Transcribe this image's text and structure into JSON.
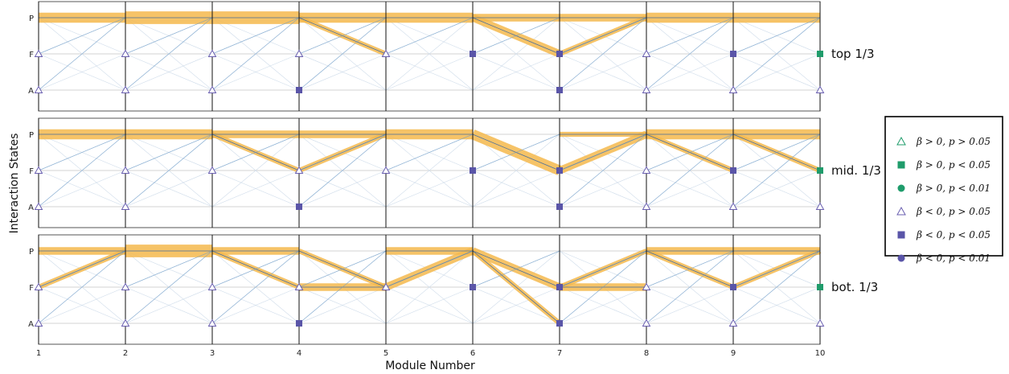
{
  "colors": {
    "band": "#f5b94c",
    "thin_line": "#6e9cc9",
    "vline": "#111111",
    "grid": "#d3d3d3",
    "open_marker": "#6a5fb0",
    "filled_purple": "#5a55a8",
    "filled_green": "#1f9c6b"
  },
  "chart_data": {
    "type": "line",
    "xlabel": "Module Number",
    "ylabel": "Interaction States",
    "x": [
      1,
      2,
      3,
      4,
      5,
      6,
      7,
      8,
      9,
      10
    ],
    "x_tick_labels": [
      "1",
      "2",
      "3",
      "4",
      "5",
      "6",
      "7",
      "8",
      "9",
      "10"
    ],
    "y_categories": [
      "P",
      "F",
      "A"
    ],
    "legend": [
      {
        "label": "β > 0, p > 0.05",
        "marker": "open-triangle",
        "color": "#1f9c6b"
      },
      {
        "label": "β > 0, p < 0.05",
        "marker": "square",
        "color": "#1f9c6b"
      },
      {
        "label": "β > 0, p < 0.01",
        "marker": "circle",
        "color": "#1f9c6b"
      },
      {
        "label": "β < 0, p > 0.05",
        "marker": "open-triangle",
        "color": "#6a5fb0"
      },
      {
        "label": "β < 0, p < 0.05",
        "marker": "square",
        "color": "#5a55a8"
      },
      {
        "label": "β < 0, p < 0.01",
        "marker": "circle",
        "color": "#5a55a8"
      }
    ],
    "panels": [
      {
        "label": "top 1/3",
        "bands": [
          {
            "from": [
              1,
              "P"
            ],
            "to": [
              2,
              "P"
            ],
            "weight": 3
          },
          {
            "from": [
              2,
              "P"
            ],
            "to": [
              3,
              "P"
            ],
            "weight": 4
          },
          {
            "from": [
              3,
              "P"
            ],
            "to": [
              4,
              "P"
            ],
            "weight": 4
          },
          {
            "from": [
              4,
              "P"
            ],
            "to": [
              5,
              "P"
            ],
            "weight": 3
          },
          {
            "from": [
              4,
              "P"
            ],
            "to": [
              5,
              "F"
            ],
            "weight": 1
          },
          {
            "from": [
              5,
              "P"
            ],
            "to": [
              6,
              "P"
            ],
            "weight": 3
          },
          {
            "from": [
              6,
              "P"
            ],
            "to": [
              7,
              "P"
            ],
            "weight": 2
          },
          {
            "from": [
              6,
              "P"
            ],
            "to": [
              7,
              "F"
            ],
            "weight": 2
          },
          {
            "from": [
              7,
              "P"
            ],
            "to": [
              8,
              "P"
            ],
            "weight": 2
          },
          {
            "from": [
              7,
              "F"
            ],
            "to": [
              8,
              "P"
            ],
            "weight": 1
          },
          {
            "from": [
              8,
              "P"
            ],
            "to": [
              9,
              "P"
            ],
            "weight": 3
          },
          {
            "from": [
              9,
              "P"
            ],
            "to": [
              10,
              "P"
            ],
            "weight": 3
          }
        ],
        "markers": [
          {
            "x": 1,
            "state": "F",
            "marker": "open-triangle",
            "color": "#6a5fb0"
          },
          {
            "x": 1,
            "state": "A",
            "marker": "open-triangle",
            "color": "#6a5fb0"
          },
          {
            "x": 2,
            "state": "F",
            "marker": "open-triangle",
            "color": "#6a5fb0"
          },
          {
            "x": 2,
            "state": "A",
            "marker": "open-triangle",
            "color": "#6a5fb0"
          },
          {
            "x": 3,
            "state": "F",
            "marker": "open-triangle",
            "color": "#6a5fb0"
          },
          {
            "x": 3,
            "state": "A",
            "marker": "open-triangle",
            "color": "#6a5fb0"
          },
          {
            "x": 4,
            "state": "F",
            "marker": "open-triangle",
            "color": "#6a5fb0"
          },
          {
            "x": 4,
            "state": "A",
            "marker": "square",
            "color": "#5a55a8"
          },
          {
            "x": 5,
            "state": "F",
            "marker": "open-triangle",
            "color": "#6a5fb0"
          },
          {
            "x": 6,
            "state": "F",
            "marker": "square",
            "color": "#5a55a8"
          },
          {
            "x": 7,
            "state": "F",
            "marker": "square",
            "color": "#5a55a8"
          },
          {
            "x": 7,
            "state": "A",
            "marker": "square",
            "color": "#5a55a8"
          },
          {
            "x": 8,
            "state": "F",
            "marker": "open-triangle",
            "color": "#6a5fb0"
          },
          {
            "x": 8,
            "state": "A",
            "marker": "open-triangle",
            "color": "#6a5fb0"
          },
          {
            "x": 9,
            "state": "F",
            "marker": "square",
            "color": "#5a55a8"
          },
          {
            "x": 9,
            "state": "A",
            "marker": "open-triangle",
            "color": "#6a5fb0"
          },
          {
            "x": 10,
            "state": "F",
            "marker": "square",
            "color": "#1f9c6b"
          },
          {
            "x": 10,
            "state": "A",
            "marker": "open-triangle",
            "color": "#6a5fb0"
          }
        ]
      },
      {
        "label": "mid. 1/3",
        "bands": [
          {
            "from": [
              1,
              "P"
            ],
            "to": [
              2,
              "P"
            ],
            "weight": 3
          },
          {
            "from": [
              2,
              "P"
            ],
            "to": [
              3,
              "P"
            ],
            "weight": 3
          },
          {
            "from": [
              3,
              "P"
            ],
            "to": [
              4,
              "P"
            ],
            "weight": 2
          },
          {
            "from": [
              3,
              "P"
            ],
            "to": [
              4,
              "F"
            ],
            "weight": 1
          },
          {
            "from": [
              4,
              "P"
            ],
            "to": [
              5,
              "P"
            ],
            "weight": 2
          },
          {
            "from": [
              4,
              "F"
            ],
            "to": [
              5,
              "P"
            ],
            "weight": 1
          },
          {
            "from": [
              5,
              "P"
            ],
            "to": [
              6,
              "P"
            ],
            "weight": 3
          },
          {
            "from": [
              6,
              "P"
            ],
            "to": [
              7,
              "F"
            ],
            "weight": 3
          },
          {
            "from": [
              7,
              "P"
            ],
            "to": [
              8,
              "P"
            ],
            "weight": 1
          },
          {
            "from": [
              7,
              "F"
            ],
            "to": [
              8,
              "P"
            ],
            "weight": 2
          },
          {
            "from": [
              8,
              "P"
            ],
            "to": [
              9,
              "P"
            ],
            "weight": 3
          },
          {
            "from": [
              8,
              "P"
            ],
            "to": [
              9,
              "F"
            ],
            "weight": 1
          },
          {
            "from": [
              9,
              "P"
            ],
            "to": [
              10,
              "P"
            ],
            "weight": 3
          },
          {
            "from": [
              9,
              "P"
            ],
            "to": [
              10,
              "F"
            ],
            "weight": 1
          }
        ],
        "markers": [
          {
            "x": 1,
            "state": "F",
            "marker": "open-triangle",
            "color": "#6a5fb0"
          },
          {
            "x": 1,
            "state": "A",
            "marker": "open-triangle",
            "color": "#6a5fb0"
          },
          {
            "x": 2,
            "state": "F",
            "marker": "open-triangle",
            "color": "#6a5fb0"
          },
          {
            "x": 2,
            "state": "A",
            "marker": "open-triangle",
            "color": "#6a5fb0"
          },
          {
            "x": 3,
            "state": "F",
            "marker": "open-triangle",
            "color": "#6a5fb0"
          },
          {
            "x": 4,
            "state": "F",
            "marker": "open-triangle",
            "color": "#6a5fb0"
          },
          {
            "x": 4,
            "state": "A",
            "marker": "square",
            "color": "#5a55a8"
          },
          {
            "x": 5,
            "state": "F",
            "marker": "open-triangle",
            "color": "#6a5fb0"
          },
          {
            "x": 6,
            "state": "F",
            "marker": "square",
            "color": "#5a55a8"
          },
          {
            "x": 7,
            "state": "F",
            "marker": "square",
            "color": "#5a55a8"
          },
          {
            "x": 7,
            "state": "A",
            "marker": "square",
            "color": "#5a55a8"
          },
          {
            "x": 8,
            "state": "F",
            "marker": "open-triangle",
            "color": "#6a5fb0"
          },
          {
            "x": 8,
            "state": "A",
            "marker": "open-triangle",
            "color": "#6a5fb0"
          },
          {
            "x": 9,
            "state": "F",
            "marker": "square",
            "color": "#5a55a8"
          },
          {
            "x": 9,
            "state": "A",
            "marker": "open-triangle",
            "color": "#6a5fb0"
          },
          {
            "x": 10,
            "state": "F",
            "marker": "square",
            "color": "#1f9c6b"
          },
          {
            "x": 10,
            "state": "A",
            "marker": "open-triangle",
            "color": "#6a5fb0"
          }
        ]
      },
      {
        "label": "bot. 1/3",
        "bands": [
          {
            "from": [
              1,
              "P"
            ],
            "to": [
              2,
              "P"
            ],
            "weight": 2
          },
          {
            "from": [
              1,
              "F"
            ],
            "to": [
              2,
              "P"
            ],
            "weight": 1
          },
          {
            "from": [
              2,
              "P"
            ],
            "to": [
              3,
              "P"
            ],
            "weight": 4
          },
          {
            "from": [
              3,
              "P"
            ],
            "to": [
              4,
              "P"
            ],
            "weight": 2
          },
          {
            "from": [
              3,
              "P"
            ],
            "to": [
              4,
              "F"
            ],
            "weight": 1
          },
          {
            "from": [
              4,
              "P"
            ],
            "to": [
              5,
              "F"
            ],
            "weight": 1
          },
          {
            "from": [
              4,
              "F"
            ],
            "to": [
              5,
              "F"
            ],
            "weight": 2
          },
          {
            "from": [
              5,
              "P"
            ],
            "to": [
              6,
              "P"
            ],
            "weight": 2
          },
          {
            "from": [
              5,
              "F"
            ],
            "to": [
              6,
              "P"
            ],
            "weight": 2
          },
          {
            "from": [
              6,
              "P"
            ],
            "to": [
              7,
              "F"
            ],
            "weight": 2
          },
          {
            "from": [
              6,
              "P"
            ],
            "to": [
              7,
              "A"
            ],
            "weight": 1
          },
          {
            "from": [
              7,
              "F"
            ],
            "to": [
              8,
              "F"
            ],
            "weight": 2
          },
          {
            "from": [
              7,
              "F"
            ],
            "to": [
              8,
              "P"
            ],
            "weight": 1
          },
          {
            "from": [
              8,
              "P"
            ],
            "to": [
              9,
              "P"
            ],
            "weight": 2
          },
          {
            "from": [
              8,
              "P"
            ],
            "to": [
              9,
              "F"
            ],
            "weight": 1
          },
          {
            "from": [
              9,
              "P"
            ],
            "to": [
              10,
              "P"
            ],
            "weight": 2
          },
          {
            "from": [
              9,
              "F"
            ],
            "to": [
              10,
              "P"
            ],
            "weight": 1
          }
        ],
        "markers": [
          {
            "x": 1,
            "state": "F",
            "marker": "open-triangle",
            "color": "#6a5fb0"
          },
          {
            "x": 1,
            "state": "A",
            "marker": "open-triangle",
            "color": "#6a5fb0"
          },
          {
            "x": 2,
            "state": "F",
            "marker": "open-triangle",
            "color": "#6a5fb0"
          },
          {
            "x": 2,
            "state": "A",
            "marker": "open-triangle",
            "color": "#6a5fb0"
          },
          {
            "x": 3,
            "state": "F",
            "marker": "open-triangle",
            "color": "#6a5fb0"
          },
          {
            "x": 3,
            "state": "A",
            "marker": "open-triangle",
            "color": "#6a5fb0"
          },
          {
            "x": 4,
            "state": "F",
            "marker": "open-triangle",
            "color": "#6a5fb0"
          },
          {
            "x": 4,
            "state": "A",
            "marker": "square",
            "color": "#5a55a8"
          },
          {
            "x": 5,
            "state": "F",
            "marker": "open-triangle",
            "color": "#6a5fb0"
          },
          {
            "x": 6,
            "state": "F",
            "marker": "square",
            "color": "#5a55a8"
          },
          {
            "x": 7,
            "state": "F",
            "marker": "square",
            "color": "#5a55a8"
          },
          {
            "x": 7,
            "state": "A",
            "marker": "square",
            "color": "#5a55a8"
          },
          {
            "x": 8,
            "state": "F",
            "marker": "open-triangle",
            "color": "#6a5fb0"
          },
          {
            "x": 8,
            "state": "A",
            "marker": "open-triangle",
            "color": "#6a5fb0"
          },
          {
            "x": 9,
            "state": "F",
            "marker": "square",
            "color": "#5a55a8"
          },
          {
            "x": 9,
            "state": "A",
            "marker": "open-triangle",
            "color": "#6a5fb0"
          },
          {
            "x": 10,
            "state": "F",
            "marker": "square",
            "color": "#1f9c6b"
          },
          {
            "x": 10,
            "state": "A",
            "marker": "open-triangle",
            "color": "#6a5fb0"
          }
        ]
      }
    ]
  }
}
